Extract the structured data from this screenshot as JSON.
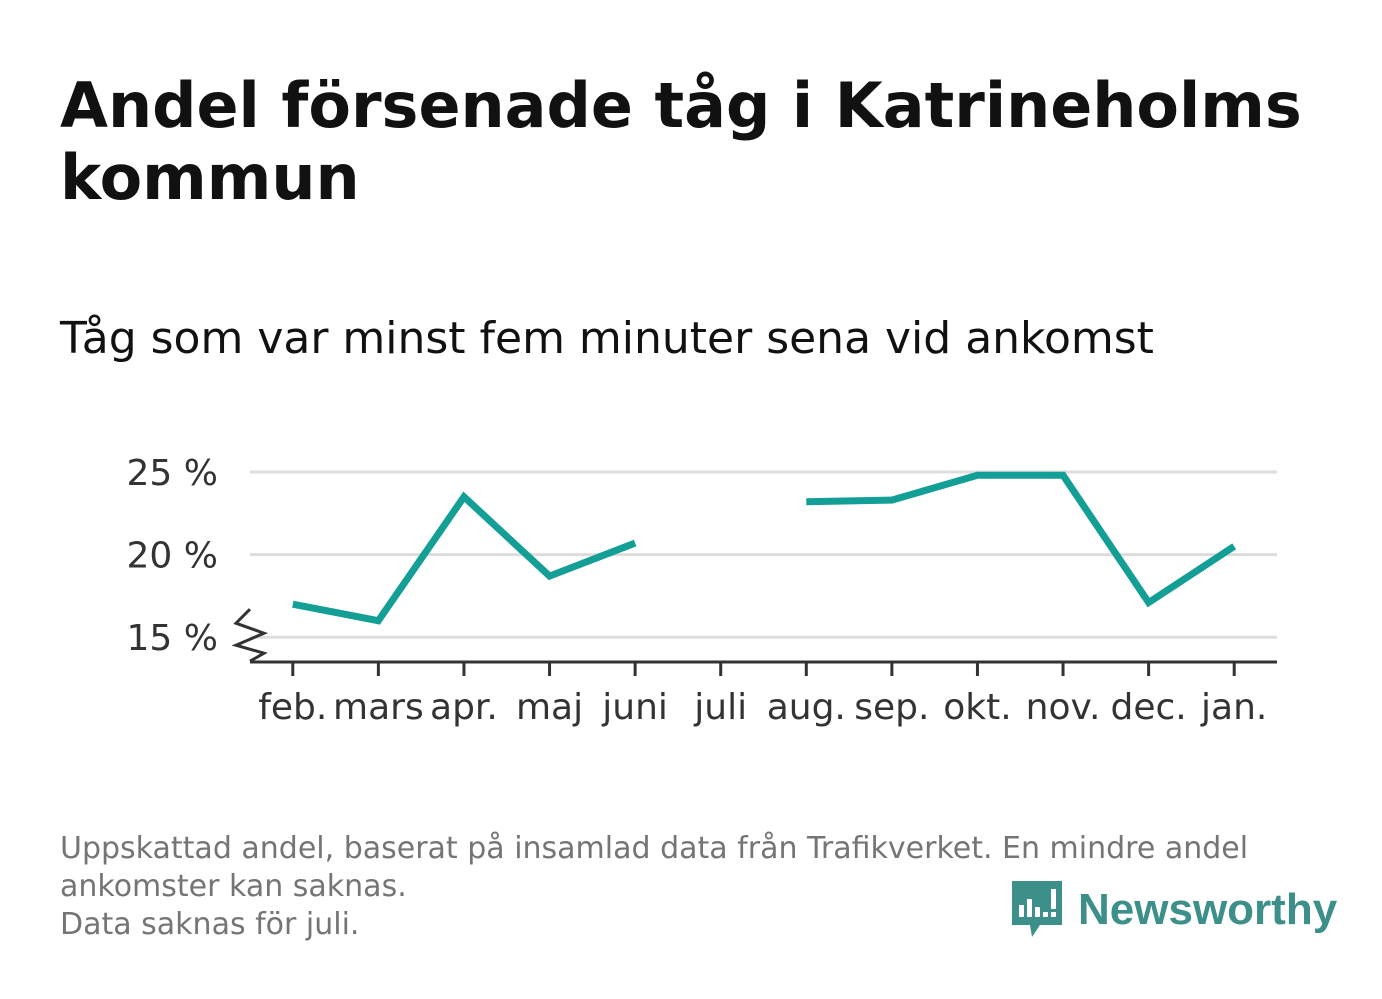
{
  "header": {
    "title": "Andel försenade tåg i Katrineholms kommun",
    "subtitle": "Tåg som var minst fem minuter sena vid ankomst"
  },
  "footnote": {
    "line1": "Uppskattad andel, baserat på insamlad data från Trafikverket. En mindre andel ankomster kan saknas.",
    "line2": "Data saknas för juli."
  },
  "brand": {
    "name": "Newsworthy",
    "icon": "newsworthy-logo-icon",
    "color": "#3d8f89"
  },
  "colors": {
    "line": "#139e96",
    "grid": "#dddddd",
    "axis": "#333333",
    "tick_label": "#333333"
  },
  "chart_data": {
    "type": "line",
    "categories": [
      "feb.",
      "mars",
      "apr.",
      "maj",
      "juni",
      "juli",
      "aug.",
      "sep.",
      "okt.",
      "nov.",
      "dec.",
      "jan."
    ],
    "series": [
      {
        "values": [
          17.0,
          16.0,
          23.5,
          18.7,
          20.7,
          null,
          23.2,
          23.3,
          24.8,
          24.8,
          17.1,
          20.5
        ]
      }
    ],
    "ylim": [
      13.5,
      25
    ],
    "yticks": [
      15,
      20,
      25
    ],
    "ytick_labels": [
      "15 %",
      "20 %",
      "25 %"
    ],
    "axis_break": true,
    "grid": true,
    "legend": "none"
  }
}
